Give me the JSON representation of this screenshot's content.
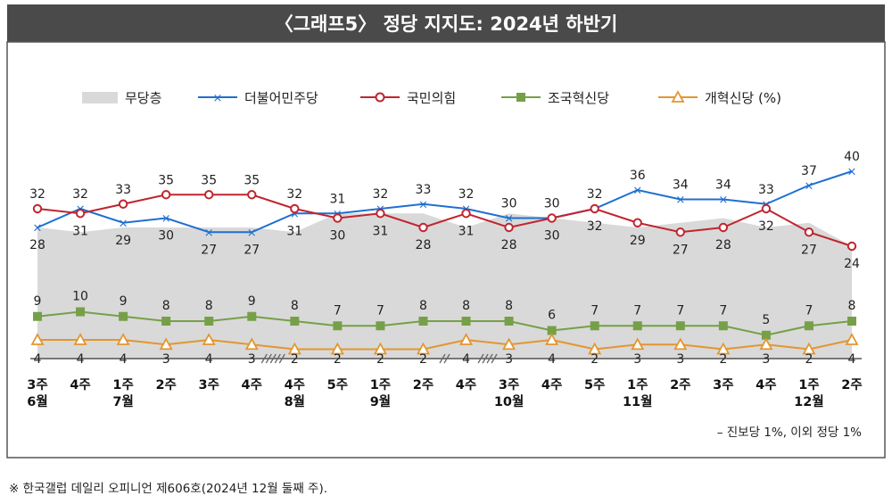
{
  "title": "〈그래프5〉 정당 지지도: 2024년 하반기",
  "note": "– 진보당 1%, 이외 정당 1%",
  "footnote": "※ 한국갤럽 데일리 오피니언 제606호(2024년 12월 둘째 주).",
  "colors": {
    "title_bg": "#4a4a4a",
    "no_party": "#d9d9d9",
    "democratic": "#1f6fd1",
    "ppp": "#c0252f",
    "rebuilding": "#76a047",
    "reform": "#e3962f"
  },
  "chart_data": {
    "type": "line",
    "legend": [
      "무당층",
      "더불어민주당",
      "국민의힘",
      "조국혁신당",
      "개혁신당 (%)"
    ],
    "x_week": [
      "3주",
      "4주",
      "1주",
      "2주",
      "3주",
      "4주",
      "4주",
      "5주",
      "1주",
      "2주",
      "4주",
      "3주",
      "4주",
      "5주",
      "1주",
      "2주",
      "3주",
      "4주",
      "1주",
      "2주"
    ],
    "x_month": [
      "6월",
      "",
      "7월",
      "",
      "",
      "",
      "8월",
      "",
      "9월",
      "",
      "",
      "10월",
      "",
      "",
      "11월",
      "",
      "",
      "",
      "12월",
      ""
    ],
    "series": [
      {
        "name": "무당층",
        "values": [
          28,
          27,
          28,
          28,
          28,
          28,
          27,
          31,
          31,
          31,
          28,
          31,
          30,
          29,
          28,
          29,
          30,
          28,
          29,
          24
        ]
      },
      {
        "name": "더불어민주당",
        "values": [
          28,
          32,
          29,
          30,
          27,
          27,
          31,
          31,
          32,
          33,
          32,
          30,
          30,
          32,
          36,
          34,
          34,
          33,
          37,
          40
        ]
      },
      {
        "name": "국민의힘",
        "values": [
          32,
          31,
          33,
          35,
          35,
          35,
          32,
          30,
          31,
          28,
          31,
          28,
          30,
          32,
          29,
          27,
          28,
          32,
          27,
          24
        ]
      },
      {
        "name": "조국혁신당",
        "values": [
          9,
          10,
          9,
          8,
          8,
          9,
          8,
          7,
          7,
          8,
          8,
          8,
          6,
          7,
          7,
          7,
          7,
          5,
          7,
          8
        ]
      },
      {
        "name": "개혁신당",
        "values": [
          4,
          4,
          4,
          3,
          4,
          3,
          2,
          2,
          2,
          2,
          4,
          3,
          4,
          2,
          3,
          3,
          2,
          3,
          2,
          4
        ]
      }
    ],
    "labels": {
      "democratic": [
        "28",
        "32",
        "29",
        "30",
        "27",
        "27",
        "31",
        "31",
        "32",
        "33",
        "32",
        "30",
        "30",
        "32",
        "36",
        "34",
        "34",
        "33",
        "37",
        "40"
      ],
      "ppp": [
        "32",
        "31",
        "33",
        "35",
        "35",
        "35",
        "32",
        "30",
        "31",
        "28",
        "31",
        "28",
        "30",
        "32",
        "29",
        "27",
        "28",
        "32",
        "27",
        "24"
      ],
      "rebuilding": [
        "9",
        "10",
        "9",
        "8",
        "8",
        "9",
        "8",
        "7",
        "7",
        "8",
        "8",
        "8",
        "6",
        "7",
        "7",
        "7",
        "7",
        "5",
        "7",
        "8"
      ],
      "reform": [
        "4",
        "4",
        "4",
        "3",
        "4",
        "3",
        "2",
        "2",
        "2",
        "2",
        "4",
        "3",
        "4",
        "2",
        "3",
        "3",
        "2",
        "3",
        "2",
        "4"
      ]
    },
    "ylim": [
      0,
      42
    ],
    "grid": false,
    "legend_position": "top"
  }
}
